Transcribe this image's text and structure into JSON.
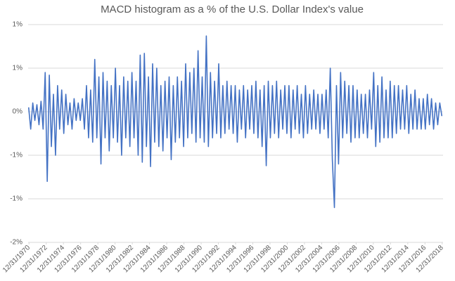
{
  "chart_data": {
    "type": "line",
    "title": "MACD histogram as a % of the U.S. Dollar Index's value",
    "color": "#4472c4",
    "grid": true,
    "ylim": [
      -1.5,
      1
    ],
    "yticks": [
      {
        "value": 1,
        "label": "1%"
      },
      {
        "value": 0.5,
        "label": "1%"
      },
      {
        "value": 0,
        "label": "0%"
      },
      {
        "value": -0.5,
        "label": "-1%"
      },
      {
        "value": -1,
        "label": "-1%"
      },
      {
        "value": -1.5,
        "label": "-2%"
      }
    ],
    "xlim": [
      1970.9,
      2019.1
    ],
    "xticks": [
      {
        "value": 1971,
        "label": "12/31/1970"
      },
      {
        "value": 1973,
        "label": "12/31/1972"
      },
      {
        "value": 1975,
        "label": "12/31/1974"
      },
      {
        "value": 1977,
        "label": "12/31/1976"
      },
      {
        "value": 1979,
        "label": "12/31/1978"
      },
      {
        "value": 1981,
        "label": "12/31/1980"
      },
      {
        "value": 1983,
        "label": "12/31/1982"
      },
      {
        "value": 1985,
        "label": "12/31/1984"
      },
      {
        "value": 1987,
        "label": "12/31/1986"
      },
      {
        "value": 1989,
        "label": "12/31/1988"
      },
      {
        "value": 1991,
        "label": "12/31/1990"
      },
      {
        "value": 1993,
        "label": "12/31/1992"
      },
      {
        "value": 1995,
        "label": "12/31/1994"
      },
      {
        "value": 1997,
        "label": "12/31/1996"
      },
      {
        "value": 1999,
        "label": "12/31/1998"
      },
      {
        "value": 2001,
        "label": "12/31/2000"
      },
      {
        "value": 2003,
        "label": "12/31/2002"
      },
      {
        "value": 2005,
        "label": "12/31/2004"
      },
      {
        "value": 2007,
        "label": "12/31/2006"
      },
      {
        "value": 2009,
        "label": "12/31/2008"
      },
      {
        "value": 2011,
        "label": "12/31/2010"
      },
      {
        "value": 2013,
        "label": "12/31/2012"
      },
      {
        "value": 2015,
        "label": "12/31/2014"
      },
      {
        "value": 2017,
        "label": "12/31/2016"
      },
      {
        "value": 2019,
        "label": "12/31/2018"
      }
    ],
    "x": [
      1970.96,
      1971.2,
      1971.44,
      1971.68,
      1971.92,
      1972.16,
      1972.4,
      1972.64,
      1972.88,
      1973.12,
      1973.36,
      1973.6,
      1973.84,
      1974.08,
      1974.32,
      1974.56,
      1974.8,
      1975.04,
      1975.28,
      1975.52,
      1975.76,
      1976,
      1976.24,
      1976.48,
      1976.72,
      1976.96,
      1977.2,
      1977.44,
      1977.68,
      1977.92,
      1978.16,
      1978.4,
      1978.64,
      1978.88,
      1979.12,
      1979.36,
      1979.6,
      1979.84,
      1980.08,
      1980.32,
      1980.56,
      1980.8,
      1981.04,
      1981.28,
      1981.52,
      1981.76,
      1982,
      1982.24,
      1982.48,
      1982.72,
      1982.96,
      1983.2,
      1983.44,
      1983.68,
      1983.92,
      1984.16,
      1984.4,
      1984.64,
      1984.88,
      1985.12,
      1985.36,
      1985.6,
      1985.84,
      1986.08,
      1986.32,
      1986.56,
      1986.8,
      1987.04,
      1987.28,
      1987.52,
      1987.76,
      1988,
      1988.24,
      1988.48,
      1988.72,
      1988.96,
      1989.2,
      1989.44,
      1989.68,
      1989.92,
      1990.16,
      1990.4,
      1990.64,
      1990.88,
      1991.12,
      1991.36,
      1991.6,
      1991.84,
      1992.08,
      1992.32,
      1992.56,
      1992.8,
      1993.04,
      1993.28,
      1993.52,
      1993.76,
      1994,
      1994.24,
      1994.48,
      1994.72,
      1994.96,
      1995.2,
      1995.44,
      1995.68,
      1995.92,
      1996.16,
      1996.4,
      1996.64,
      1996.88,
      1997.12,
      1997.36,
      1997.6,
      1997.84,
      1998.08,
      1998.32,
      1998.56,
      1998.8,
      1999.04,
      1999.28,
      1999.52,
      1999.76,
      2000,
      2000.24,
      2000.48,
      2000.72,
      2000.96,
      2001.2,
      2001.44,
      2001.68,
      2001.92,
      2002.16,
      2002.4,
      2002.64,
      2002.88,
      2003.12,
      2003.36,
      2003.6,
      2003.84,
      2004.08,
      2004.32,
      2004.56,
      2004.8,
      2005.04,
      2005.28,
      2005.52,
      2005.76,
      2006,
      2006.24,
      2006.48,
      2006.72,
      2006.96,
      2007.2,
      2007.44,
      2007.68,
      2007.92,
      2008.16,
      2008.4,
      2008.64,
      2008.88,
      2009.12,
      2009.36,
      2009.6,
      2009.84,
      2010.08,
      2010.32,
      2010.56,
      2010.8,
      2011.04,
      2011.28,
      2011.52,
      2011.76,
      2012,
      2012.24,
      2012.48,
      2012.72,
      2012.96,
      2013.2,
      2013.44,
      2013.68,
      2013.92,
      2014.16,
      2014.4,
      2014.64,
      2014.88,
      2015.12,
      2015.36,
      2015.6,
      2015.84,
      2016.08,
      2016.32,
      2016.56,
      2016.8,
      2017.04,
      2017.28,
      2017.52,
      2017.76,
      2018,
      2018.24,
      2018.48,
      2018.72,
      2018.96
    ],
    "values": [
      0.05,
      -0.2,
      0.1,
      -0.1,
      0.08,
      -0.15,
      0.12,
      -0.2,
      0.45,
      -0.8,
      0.42,
      -0.4,
      0.2,
      -0.5,
      0.3,
      -0.2,
      0.25,
      -0.25,
      0.2,
      -0.15,
      0.1,
      -0.2,
      0.15,
      -0.1,
      0.1,
      -0.1,
      0.15,
      -0.2,
      0.3,
      -0.3,
      0.25,
      -0.35,
      0.6,
      -0.3,
      0.4,
      -0.6,
      0.45,
      -0.3,
      0.35,
      -0.45,
      0.3,
      -0.3,
      0.5,
      -0.35,
      0.3,
      -0.5,
      0.4,
      -0.3,
      0.35,
      -0.4,
      0.45,
      -0.3,
      0.35,
      -0.5,
      0.65,
      -0.58,
      0.67,
      -0.4,
      0.4,
      -0.63,
      0.55,
      -0.35,
      0.5,
      -0.4,
      0.3,
      -0.45,
      0.35,
      -0.3,
      0.4,
      -0.55,
      0.3,
      -0.35,
      0.4,
      -0.3,
      0.35,
      -0.4,
      0.55,
      -0.3,
      0.45,
      -0.25,
      0.5,
      -0.35,
      0.7,
      -0.3,
      0.4,
      -0.35,
      0.87,
      -0.4,
      0.45,
      -0.3,
      0.35,
      -0.25,
      0.55,
      -0.3,
      0.3,
      -0.25,
      0.35,
      -0.2,
      0.3,
      -0.25,
      0.3,
      -0.35,
      0.25,
      -0.2,
      0.3,
      -0.3,
      0.25,
      -0.2,
      0.3,
      -0.25,
      0.35,
      -0.3,
      0.25,
      -0.4,
      0.3,
      -0.62,
      0.35,
      -0.3,
      0.3,
      -0.25,
      0.35,
      -0.3,
      0.25,
      -0.2,
      0.3,
      -0.25,
      0.3,
      -0.3,
      0.25,
      -0.2,
      0.3,
      -0.25,
      0.2,
      -0.3,
      0.3,
      -0.25,
      0.2,
      -0.2,
      0.25,
      -0.2,
      0.2,
      -0.25,
      0.2,
      -0.2,
      0.25,
      -0.3,
      0.5,
      -0.55,
      -1.1,
      0.3,
      -0.6,
      0.45,
      -0.3,
      0.35,
      -0.25,
      0.3,
      -0.35,
      0.3,
      -0.3,
      0.25,
      -0.3,
      0.2,
      -0.25,
      0.2,
      -0.3,
      0.25,
      -0.2,
      0.45,
      -0.4,
      0.3,
      -0.35,
      0.4,
      -0.3,
      0.25,
      -0.3,
      0.35,
      -0.3,
      0.3,
      -0.25,
      0.3,
      -0.2,
      0.25,
      -0.2,
      0.3,
      -0.25,
      0.2,
      -0.2,
      0.25,
      -0.2,
      0.15,
      -0.2,
      0.15,
      -0.2,
      0.2,
      -0.15,
      0.15,
      -0.2,
      0.1,
      -0.15,
      0.1,
      -0.05
    ]
  }
}
